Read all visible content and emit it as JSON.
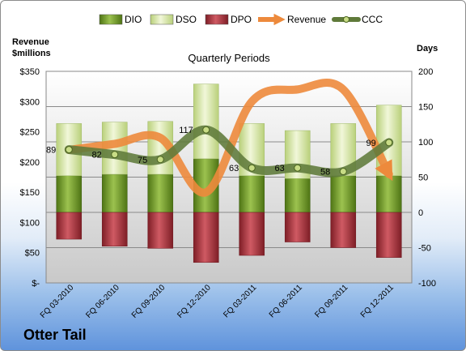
{
  "company": "Otter Tail",
  "chart_data": {
    "type": "combo-stacked-bar-line",
    "title": "Quarterly Periods",
    "left_axis_title": [
      "Revenue",
      "$millions"
    ],
    "right_axis_title": "Days",
    "left_ticks": [
      "$350",
      "$300",
      "$250",
      "$200",
      "$150",
      "$100",
      "$50",
      "$-"
    ],
    "left_ylim": [
      0,
      350
    ],
    "right_ticks": [
      "200",
      "150",
      "100",
      "50",
      "0",
      "-50",
      "-100"
    ],
    "right_ylim": [
      -100,
      200
    ],
    "grid": true,
    "legend_position": "top",
    "categories": [
      "FQ 03-2010",
      "FQ 06-2010",
      "FQ 09-2010",
      "FQ 12-2010",
      "FQ 03-2011",
      "FQ 06-2011",
      "FQ 09-2011",
      "FQ 12-2011"
    ],
    "series": [
      {
        "name": "DIO",
        "axis": "right",
        "values": [
          52,
          54,
          54,
          76,
          52,
          48,
          52,
          52
        ],
        "color": "#6f9a2c"
      },
      {
        "name": "DSO",
        "axis": "right",
        "values": [
          74,
          74,
          75,
          106,
          74,
          68,
          74,
          100
        ],
        "color": "#dbeab0"
      },
      {
        "name": "DPO",
        "axis": "right",
        "values": [
          -38,
          -48,
          -51,
          -71,
          -61,
          -42,
          -50,
          -64
        ],
        "color": "#b8343e"
      },
      {
        "name": "Revenue",
        "axis": "left",
        "values": [
          220,
          230,
          240,
          150,
          300,
          320,
          320,
          180
        ],
        "color": "#ed8a3c"
      },
      {
        "name": "CCC",
        "axis": "right",
        "values": [
          89,
          82,
          75,
          117,
          63,
          63,
          58,
          99
        ],
        "color": "#5f7a3a"
      }
    ],
    "data_labels": [
      "89",
      "82",
      "75",
      "117",
      "63",
      "63",
      "58",
      "99"
    ]
  }
}
